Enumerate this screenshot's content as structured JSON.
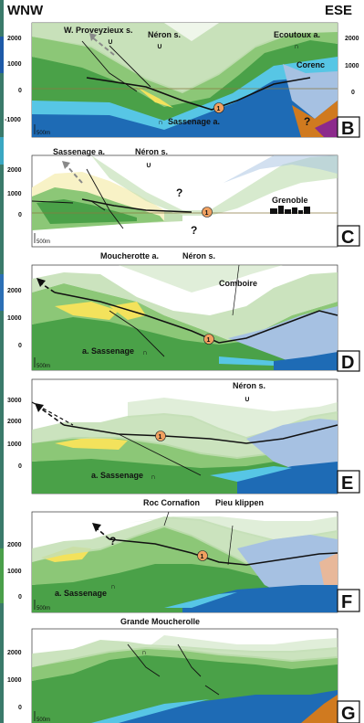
{
  "header": {
    "left": "WNW",
    "right": "ESE"
  },
  "fold_symbol": "∩",
  "syncline_symbol": "∪",
  "thrust_number": "1",
  "scale_label": "500m",
  "panels": [
    {
      "letter": "B",
      "ticks_left": [
        "2000",
        "1000",
        "0",
        "-1000"
      ],
      "ticks_right": [
        "2000",
        "1000",
        "0"
      ],
      "labels": {
        "proveyzieux": "W. Proveyzieux s.",
        "neron": "Néron s.",
        "ecoutoux": "Ecoutoux a.",
        "corenc": "Corenc",
        "sassenage": "Sassenage a.",
        "question": "?"
      }
    },
    {
      "letter": "C",
      "ticks_left": [
        "2000",
        "1000",
        "0"
      ],
      "labels": {
        "sassenage": "Sassenage a.",
        "neron": "Néron s.",
        "question": "?",
        "grenoble": "Grenoble",
        "moucherotte": "Moucherotte a."
      }
    },
    {
      "letter": "D",
      "ticks_left": [
        "2000",
        "1000",
        "0"
      ],
      "labels": {
        "neron": "Néron s.",
        "comboire": "Comboire",
        "sassenage": "a. Sassenage"
      }
    },
    {
      "letter": "E",
      "ticks_left": [
        "3000",
        "2000",
        "1000",
        "0"
      ],
      "labels": {
        "neron": "Néron s.",
        "sassenage": "a. Sassenage"
      }
    },
    {
      "letter": "F",
      "ticks_left": [
        "2000",
        "1000",
        "0"
      ],
      "labels": {
        "roc": "Roc Cornafion",
        "pieu": "Pieu klippen",
        "question": "?",
        "sassenage": "a. Sassenage"
      }
    },
    {
      "letter": "G",
      "ticks_left": [
        "2000",
        "1000",
        "0"
      ],
      "labels": {
        "grande": "Grande Moucherolle"
      }
    }
  ],
  "colors": {
    "light_green": "#c2deb3",
    "mid_green": "#8cc777",
    "dark_green": "#4aa148",
    "yellow": "#f3e25c",
    "pale_yellow": "#f8f2c6",
    "blue": "#1e6bb5",
    "cyan": "#57c6e5",
    "lavender": "#a6c1e2",
    "orange": "#d07a1f",
    "purple": "#8c2a8c",
    "thrust_marker": "#f0a060"
  }
}
